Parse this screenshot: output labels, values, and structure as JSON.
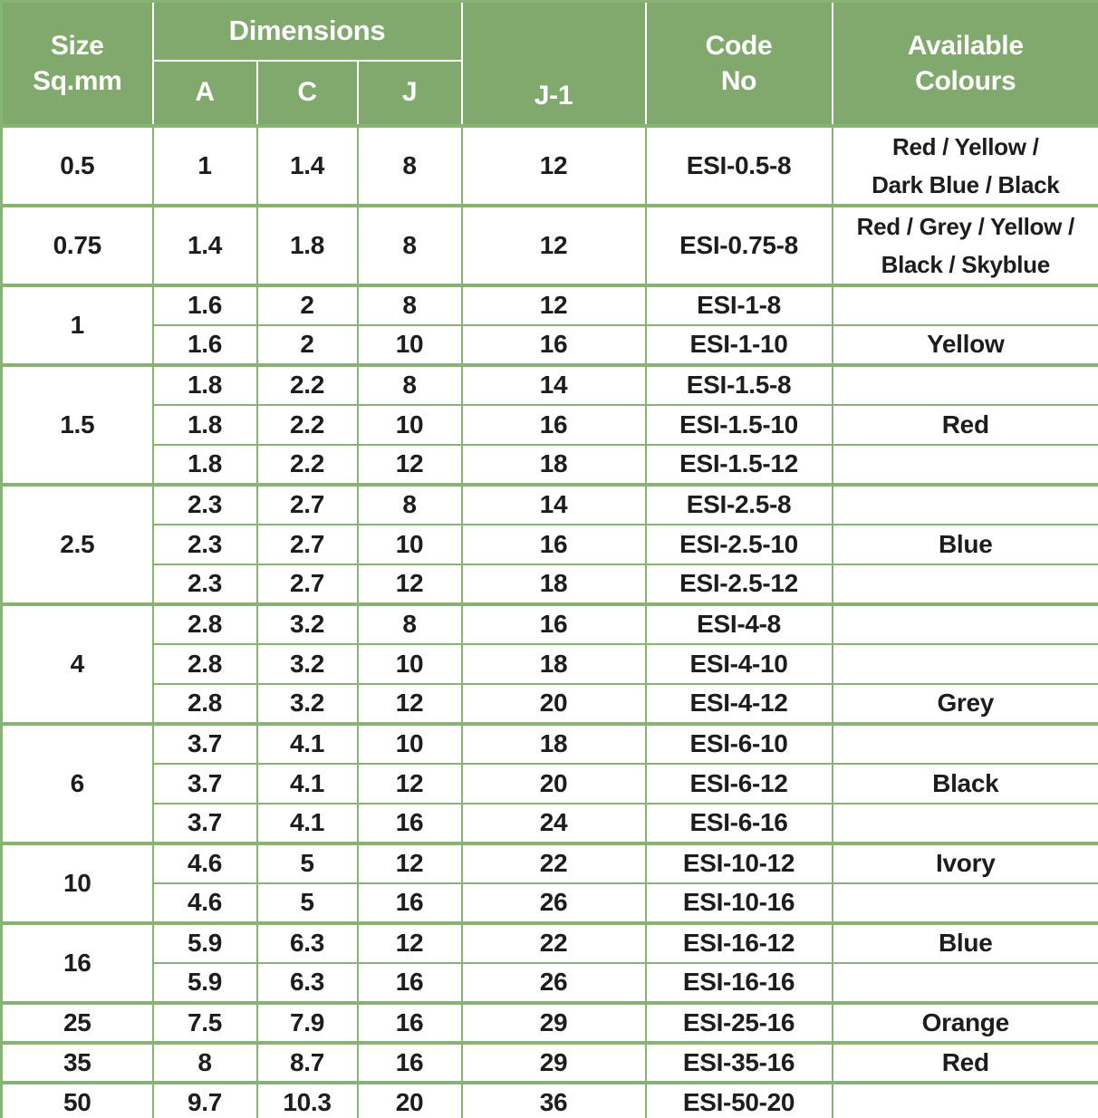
{
  "colors": {
    "header_bg": "#81a96e",
    "grid_line": "#87b374",
    "header_text": "#ffffff",
    "body_text": "#1d1d1b"
  },
  "header": {
    "size": [
      "Size",
      "Sq.mm"
    ],
    "dimensions": "Dimensions",
    "dim_a": "A",
    "dim_c": "C",
    "dim_j": "J",
    "j1": "J-1",
    "code": [
      "Code",
      "No"
    ],
    "colours": [
      "Available",
      "Colours"
    ]
  },
  "table": {
    "groups": [
      {
        "size": "0.5",
        "rows": [
          {
            "a": "1",
            "c": "1.4",
            "j": "8",
            "j1": "12",
            "code": "ESI-0.5-8",
            "colour": "Red / Yellow /\nDark Blue / Black",
            "tall": true
          }
        ]
      },
      {
        "size": "0.75",
        "rows": [
          {
            "a": "1.4",
            "c": "1.8",
            "j": "8",
            "j1": "12",
            "code": "ESI-0.75-8",
            "colour": "Red / Grey / Yellow /\nBlack / Skyblue",
            "tall": true
          }
        ]
      },
      {
        "size": "1",
        "rows": [
          {
            "a": "1.6",
            "c": "2",
            "j": "8",
            "j1": "12",
            "code": "ESI-1-8",
            "colour": ""
          },
          {
            "a": "1.6",
            "c": "2",
            "j": "10",
            "j1": "16",
            "code": "ESI-1-10",
            "colour": "Yellow"
          }
        ]
      },
      {
        "size": "1.5",
        "rows": [
          {
            "a": "1.8",
            "c": "2.2",
            "j": "8",
            "j1": "14",
            "code": "ESI-1.5-8",
            "colour": ""
          },
          {
            "a": "1.8",
            "c": "2.2",
            "j": "10",
            "j1": "16",
            "code": "ESI-1.5-10",
            "colour": "Red"
          },
          {
            "a": "1.8",
            "c": "2.2",
            "j": "12",
            "j1": "18",
            "code": "ESI-1.5-12",
            "colour": ""
          }
        ]
      },
      {
        "size": "2.5",
        "rows": [
          {
            "a": "2.3",
            "c": "2.7",
            "j": "8",
            "j1": "14",
            "code": "ESI-2.5-8",
            "colour": ""
          },
          {
            "a": "2.3",
            "c": "2.7",
            "j": "10",
            "j1": "16",
            "code": "ESI-2.5-10",
            "colour": "Blue"
          },
          {
            "a": "2.3",
            "c": "2.7",
            "j": "12",
            "j1": "18",
            "code": "ESI-2.5-12",
            "colour": ""
          }
        ]
      },
      {
        "size": "4",
        "rows": [
          {
            "a": "2.8",
            "c": "3.2",
            "j": "8",
            "j1": "16",
            "code": "ESI-4-8",
            "colour": ""
          },
          {
            "a": "2.8",
            "c": "3.2",
            "j": "10",
            "j1": "18",
            "code": "ESI-4-10",
            "colour": ""
          },
          {
            "a": "2.8",
            "c": "3.2",
            "j": "12",
            "j1": "20",
            "code": "ESI-4-12",
            "colour": "Grey"
          }
        ]
      },
      {
        "size": "6",
        "rows": [
          {
            "a": "3.7",
            "c": "4.1",
            "j": "10",
            "j1": "18",
            "code": "ESI-6-10",
            "colour": ""
          },
          {
            "a": "3.7",
            "c": "4.1",
            "j": "12",
            "j1": "20",
            "code": "ESI-6-12",
            "colour": "Black"
          },
          {
            "a": "3.7",
            "c": "4.1",
            "j": "16",
            "j1": "24",
            "code": "ESI-6-16",
            "colour": ""
          }
        ]
      },
      {
        "size": "10",
        "rows": [
          {
            "a": "4.6",
            "c": "5",
            "j": "12",
            "j1": "22",
            "code": "ESI-10-12",
            "colour": "Ivory"
          },
          {
            "a": "4.6",
            "c": "5",
            "j": "16",
            "j1": "26",
            "code": "ESI-10-16",
            "colour": ""
          }
        ]
      },
      {
        "size": "16",
        "rows": [
          {
            "a": "5.9",
            "c": "6.3",
            "j": "12",
            "j1": "22",
            "code": "ESI-16-12",
            "colour": "Blue"
          },
          {
            "a": "5.9",
            "c": "6.3",
            "j": "16",
            "j1": "26",
            "code": "ESI-16-16",
            "colour": ""
          }
        ]
      },
      {
        "size": "25",
        "rows": [
          {
            "a": "7.5",
            "c": "7.9",
            "j": "16",
            "j1": "29",
            "code": "ESI-25-16",
            "colour": "Orange"
          }
        ]
      },
      {
        "size": "35",
        "rows": [
          {
            "a": "8",
            "c": "8.7",
            "j": "16",
            "j1": "29",
            "code": "ESI-35-16",
            "colour": "Red"
          }
        ]
      },
      {
        "size": "50",
        "rows": [
          {
            "a": "9.7",
            "c": "10.3",
            "j": "20",
            "j1": "36",
            "code": "ESI-50-20",
            "colour": ""
          }
        ]
      }
    ]
  }
}
